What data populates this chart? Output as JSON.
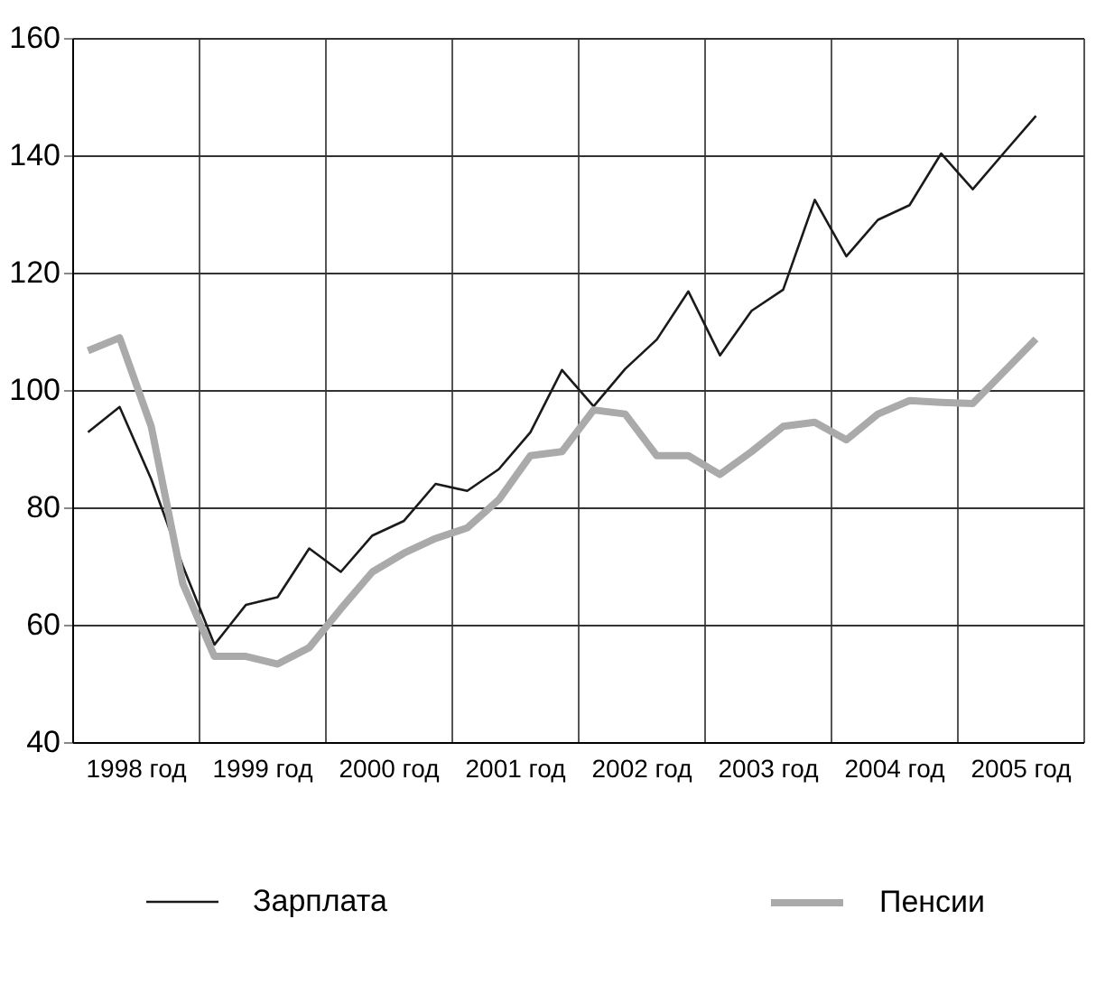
{
  "chart_data": {
    "type": "line",
    "x": [
      1998.125,
      1998.375,
      1998.625,
      1998.875,
      1999.125,
      1999.375,
      1999.625,
      1999.875,
      2000.125,
      2000.375,
      2000.625,
      2000.875,
      2001.125,
      2001.375,
      2001.625,
      2001.875,
      2002.125,
      2002.375,
      2002.625,
      2002.875,
      2003.125,
      2003.375,
      2003.625,
      2003.875,
      2004.125,
      2004.375,
      2004.625,
      2004.875,
      2005.125,
      2005.375,
      2005.625
    ],
    "series": [
      {
        "name": "Зарплата",
        "color": "#1a1a1a",
        "values": [
          92.8,
          97.1,
          84.8,
          70,
          56.6,
          63.4,
          64.7,
          73,
          69,
          75.2,
          77.7,
          84,
          82.8,
          86.5,
          92.8,
          103.4,
          97.2,
          103.6,
          108.6,
          116.8,
          105.9,
          113.5,
          117.1,
          132.4,
          122.8,
          129,
          131.5,
          140.3,
          134.2,
          140.5,
          146.7
        ]
      },
      {
        "name": "Пенсии",
        "color": "#aaaaaa",
        "values": [
          106.7,
          108.9,
          93.8,
          67,
          54.6,
          54.6,
          53.3,
          56.1,
          62.7,
          69,
          72.2,
          74.7,
          76.5,
          81.3,
          88.8,
          89.5,
          96.6,
          95.9,
          88.8,
          88.8,
          85.6,
          89.5,
          93.8,
          94.5,
          91.5,
          95.9,
          98.2,
          97.9,
          97.7,
          103.2,
          108.7
        ]
      }
    ],
    "xlim": [
      1998,
      2006
    ],
    "xticks": [
      {
        "value": 1998,
        "label": null
      },
      {
        "value": 1998.5,
        "label": "1998 год"
      },
      {
        "value": 1999,
        "label": null
      },
      {
        "value": 1999.5,
        "label": "1999 год"
      },
      {
        "value": 2000,
        "label": null
      },
      {
        "value": 2000.5,
        "label": "2000 год"
      },
      {
        "value": 2001,
        "label": null
      },
      {
        "value": 2001.5,
        "label": "2001 год"
      },
      {
        "value": 2002,
        "label": null
      },
      {
        "value": 2002.5,
        "label": "2002 год"
      },
      {
        "value": 2003,
        "label": null
      },
      {
        "value": 2003.5,
        "label": "2003 год"
      },
      {
        "value": 2004,
        "label": null
      },
      {
        "value": 2004.5,
        "label": "2004 год"
      },
      {
        "value": 2005,
        "label": null
      },
      {
        "value": 2005.5,
        "label": "2005 год"
      },
      {
        "value": 2006,
        "label": null
      }
    ],
    "ylim": [
      40,
      160
    ],
    "yticks": [
      40,
      60,
      80,
      100,
      120,
      140,
      160
    ],
    "grid": true,
    "legend": "bottom",
    "marker": "none",
    "line_style": "solid"
  }
}
